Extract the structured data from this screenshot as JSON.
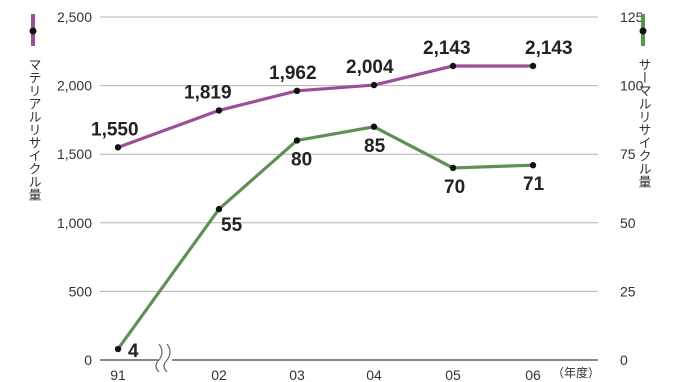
{
  "chart_data": {
    "type": "line",
    "categories": [
      "91",
      "02",
      "03",
      "04",
      "05",
      "06"
    ],
    "x_unit": "（年度）",
    "left_axis": {
      "label": "マテリアルリサイクル量",
      "ticks": [
        0,
        500,
        1000,
        1500,
        2000,
        2500
      ],
      "tick_labels": [
        "0",
        "500",
        "1,000",
        "1,500",
        "2,000",
        "2,500"
      ],
      "range": [
        0,
        2500
      ]
    },
    "right_axis": {
      "label": "サーマルリサイクル量",
      "ticks": [
        0,
        25,
        50,
        75,
        100,
        125
      ],
      "tick_labels": [
        "0",
        "25",
        "50",
        "75",
        "100",
        "125"
      ],
      "range": [
        0,
        125
      ]
    },
    "series": [
      {
        "name": "マテリアルリサイクル量",
        "axis": "left",
        "color": "#9b4f96",
        "values": [
          1550,
          1819,
          1962,
          2004,
          2143,
          2143
        ],
        "labels": [
          "1,550",
          "1,819",
          "1,962",
          "2,004",
          "2,143",
          "2,143"
        ]
      },
      {
        "name": "サーマルリサイクル量",
        "axis": "right",
        "color": "#5f9156",
        "values": [
          4,
          55,
          80,
          85,
          70,
          71
        ],
        "labels": [
          "4",
          "55",
          "80",
          "85",
          "70",
          "71"
        ]
      }
    ],
    "axis_break": true,
    "grid": true
  }
}
